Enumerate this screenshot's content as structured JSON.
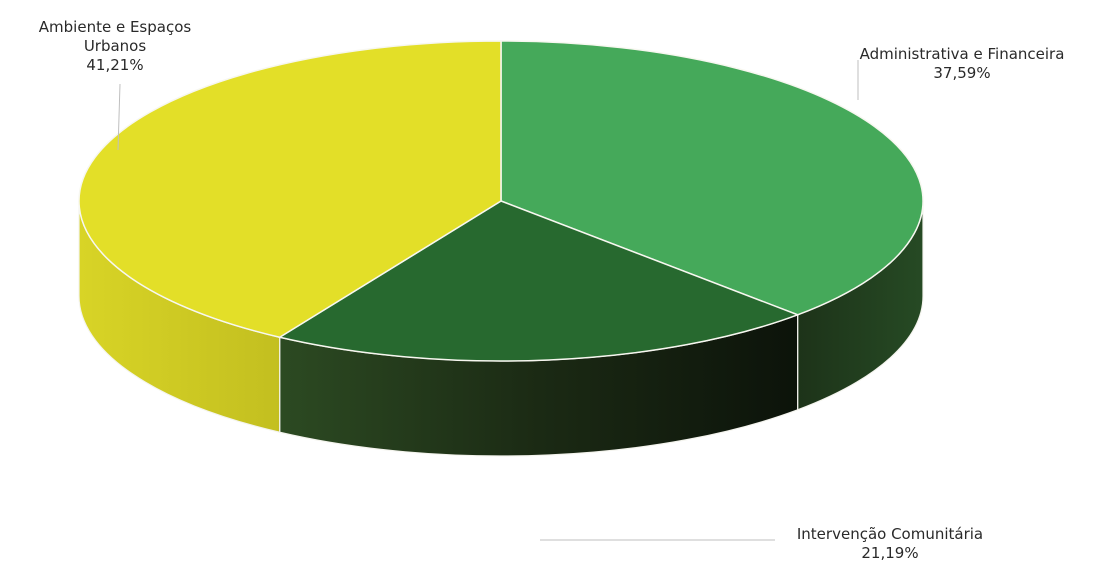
{
  "chart_data": {
    "type": "pie",
    "title": "",
    "three_d": true,
    "slices": [
      {
        "label_lines": [
          "Ambiente e Espaços",
          "Urbanos"
        ],
        "value_label": "41,21%",
        "value": 41.21,
        "color": "#e3df28",
        "side_color": "#c9c521"
      },
      {
        "label_lines": [
          "Administrativa e Financeira"
        ],
        "value_label": "37,59%",
        "value": 37.59,
        "color": "#45a95a",
        "side_color": "#22471f"
      },
      {
        "label_lines": [
          "Intervenção Comunitária"
        ],
        "value_label": "21,19%",
        "value": 21.19,
        "color": "#27692f",
        "side_color": "#1a2f15"
      }
    ]
  }
}
